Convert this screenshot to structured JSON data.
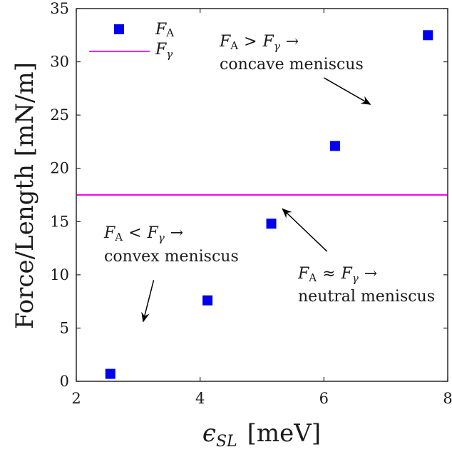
{
  "chart_data": {
    "type": "scatter",
    "xlabel": "ϵSL [meV]",
    "xlabel_parts": {
      "symbol": "ϵ",
      "subscript": "SL",
      "unit": "[meV]"
    },
    "ylabel": "Force/Length [mN/m]",
    "xlim": [
      2,
      8
    ],
    "ylim": [
      0,
      35
    ],
    "x_ticks": [
      2,
      4,
      6,
      8
    ],
    "y_ticks": [
      0,
      5,
      10,
      15,
      20,
      25,
      30,
      35
    ],
    "x_tick_labels": [
      "2",
      "4",
      "6",
      "8"
    ],
    "y_tick_labels": [
      "0",
      "5",
      "10",
      "15",
      "20",
      "25",
      "30",
      "35"
    ],
    "grid": false,
    "legend_position": "top-left",
    "series": [
      {
        "name": "FA",
        "name_parts": {
          "main": "F",
          "sub": "A"
        },
        "type": "scatter",
        "marker": "square",
        "color": "#0000ee",
        "x": [
          2.55,
          4.12,
          5.15,
          6.18,
          7.68
        ],
        "y": [
          0.7,
          7.6,
          14.8,
          22.1,
          32.5
        ]
      },
      {
        "name": "Fγ",
        "name_parts": {
          "main": "F",
          "sub": "γ"
        },
        "type": "hline",
        "color": "#ff00ff",
        "y": 17.5
      }
    ],
    "annotations": [
      {
        "id": "concave",
        "line1": {
          "lhs": "F",
          "lhs_sub": "A",
          "op": ">",
          "rhs": "F",
          "rhs_sub": "γ",
          "arrow": "→"
        },
        "line2": "concave meniscus",
        "arrow_from": [
          6.0,
          28.5
        ],
        "arrow_to": [
          6.75,
          26.0
        ]
      },
      {
        "id": "convex",
        "line1": {
          "lhs": "F",
          "lhs_sub": "A",
          "op": "<",
          "rhs": "F",
          "rhs_sub": "γ",
          "arrow": "→"
        },
        "line2": "convex meniscus",
        "arrow_from": [
          3.25,
          9.5
        ],
        "arrow_to": [
          3.08,
          5.6
        ]
      },
      {
        "id": "neutral",
        "line1": {
          "lhs": "F",
          "lhs_sub": "A",
          "op": "≈",
          "rhs": "F",
          "rhs_sub": "γ",
          "arrow": "→"
        },
        "line2": "neutral meniscus",
        "arrow_from": [
          6.05,
          12.2
        ],
        "arrow_to": [
          5.33,
          16.2
        ]
      }
    ]
  }
}
